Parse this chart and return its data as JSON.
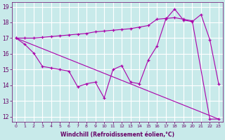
{
  "bg_color": "#c8eaea",
  "grid_color": "#aadddd",
  "line_color": "#aa00aa",
  "xlabel": "Windchill (Refroidissement éolien,°C)",
  "xlim": [
    -0.5,
    23.5
  ],
  "ylim": [
    11.7,
    19.3
  ],
  "xticks": [
    0,
    1,
    2,
    3,
    4,
    5,
    6,
    7,
    8,
    9,
    10,
    11,
    12,
    13,
    14,
    15,
    16,
    17,
    18,
    19,
    20,
    21,
    22,
    23
  ],
  "yticks": [
    12,
    13,
    14,
    15,
    16,
    17,
    18,
    19
  ],
  "curve1_x": [
    0,
    1,
    2,
    3,
    4,
    5,
    6,
    7,
    8,
    9,
    10,
    11,
    12,
    13,
    14,
    15,
    16,
    17,
    18,
    19,
    20,
    21,
    22,
    23
  ],
  "curve1_y": [
    17.0,
    16.6,
    16.05,
    15.2,
    15.1,
    15.0,
    14.9,
    13.9,
    14.1,
    14.2,
    13.2,
    15.0,
    15.25,
    14.2,
    14.1,
    15.6,
    16.5,
    18.2,
    18.85,
    18.15,
    18.05,
    18.5,
    16.9,
    14.1
  ],
  "curve2_x": [
    0,
    1,
    2,
    3,
    4,
    5,
    6,
    7,
    8,
    9,
    10,
    11,
    12,
    13,
    14,
    15,
    16,
    17,
    18,
    19,
    20,
    22,
    23
  ],
  "curve2_y": [
    17.0,
    17.0,
    17.0,
    17.05,
    17.1,
    17.15,
    17.2,
    17.25,
    17.3,
    17.4,
    17.45,
    17.5,
    17.55,
    17.6,
    17.7,
    17.8,
    18.2,
    18.25,
    18.3,
    18.2,
    18.1,
    11.85,
    11.85
  ],
  "line3_x": [
    0,
    23
  ],
  "line3_y": [
    17.0,
    11.85
  ],
  "tick_color": "#660066",
  "label_color": "#660066",
  "spine_color": "#660066"
}
